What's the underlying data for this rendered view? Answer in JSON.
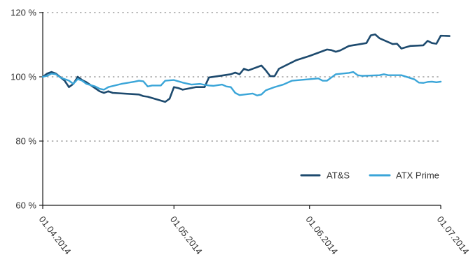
{
  "chart_data": {
    "type": "line",
    "title": "",
    "xlabel": "",
    "ylabel": "",
    "xlim": [
      "01.04.2014",
      "01.07.2014"
    ],
    "ylim": [
      60,
      120
    ],
    "x_ticks": [
      "01.04.2014",
      "01.05.2014",
      "01.06.2014",
      "01.07.2014"
    ],
    "y_ticks": [
      {
        "value": 60,
        "label": "60 %"
      },
      {
        "value": 80,
        "label": "80 %"
      },
      {
        "value": 100,
        "label": "100 %"
      },
      {
        "value": 120,
        "label": "120 %"
      }
    ],
    "grid": "horizontal dotted",
    "legend_position": "lower-right",
    "series": [
      {
        "name": "AT&S",
        "color": "#1d4a6e",
        "points": [
          [
            "01.04.2014",
            100.0
          ],
          [
            "02.04.2014",
            101.0
          ],
          [
            "03.04.2014",
            101.5
          ],
          [
            "04.04.2014",
            101.0
          ],
          [
            "06.04.2014",
            98.8
          ],
          [
            "07.04.2014",
            96.8
          ],
          [
            "08.04.2014",
            97.8
          ],
          [
            "09.04.2014",
            100.0
          ],
          [
            "10.04.2014",
            99.0
          ],
          [
            "11.04.2014",
            98.3
          ],
          [
            "14.04.2014",
            95.5
          ],
          [
            "15.04.2014",
            95.0
          ],
          [
            "16.04.2014",
            95.5
          ],
          [
            "17.04.2014",
            95.0
          ],
          [
            "23.04.2014",
            94.5
          ],
          [
            "24.04.2014",
            94.0
          ],
          [
            "25.04.2014",
            93.8
          ],
          [
            "29.04.2014",
            92.2
          ],
          [
            "30.04.2014",
            93.2
          ],
          [
            "01.05.2014",
            96.8
          ],
          [
            "02.05.2014",
            96.5
          ],
          [
            "03.05.2014",
            96.0
          ],
          [
            "06.05.2014",
            96.8
          ],
          [
            "08.05.2014",
            96.8
          ],
          [
            "09.05.2014",
            99.8
          ],
          [
            "14.05.2014",
            100.8
          ],
          [
            "15.05.2014",
            101.3
          ],
          [
            "16.05.2014",
            100.8
          ],
          [
            "17.05.2014",
            102.5
          ],
          [
            "18.05.2014",
            102.0
          ],
          [
            "21.05.2014",
            103.5
          ],
          [
            "22.05.2014",
            102.0
          ],
          [
            "23.05.2014",
            100.2
          ],
          [
            "24.05.2014",
            100.2
          ],
          [
            "25.05.2014",
            102.5
          ],
          [
            "29.05.2014",
            105.2
          ],
          [
            "01.06.2014",
            106.5
          ],
          [
            "05.06.2014",
            108.5
          ],
          [
            "06.06.2014",
            108.3
          ],
          [
            "07.06.2014",
            107.8
          ],
          [
            "08.06.2014",
            108.2
          ],
          [
            "10.06.2014",
            109.6
          ],
          [
            "14.06.2014",
            110.5
          ],
          [
            "15.06.2014",
            112.9
          ],
          [
            "16.06.2014",
            113.2
          ],
          [
            "17.06.2014",
            112.0
          ],
          [
            "20.06.2014",
            110.2
          ],
          [
            "21.06.2014",
            110.3
          ],
          [
            "22.06.2014",
            108.8
          ],
          [
            "24.06.2014",
            109.6
          ],
          [
            "27.06.2014",
            109.8
          ],
          [
            "28.06.2014",
            111.2
          ],
          [
            "29.06.2014",
            110.5
          ],
          [
            "30.06.2014",
            110.3
          ],
          [
            "01.07.2014",
            112.8
          ],
          [
            "03.07.2014",
            112.7
          ]
        ]
      },
      {
        "name": "ATX Prime",
        "color": "#3aa5d8",
        "points": [
          [
            "01.04.2014",
            100.0
          ],
          [
            "02.04.2014",
            100.3
          ],
          [
            "03.04.2014",
            101.0
          ],
          [
            "04.04.2014",
            100.8
          ],
          [
            "05.04.2014",
            99.8
          ],
          [
            "06.04.2014",
            99.3
          ],
          [
            "07.04.2014",
            98.8
          ],
          [
            "08.04.2014",
            97.8
          ],
          [
            "09.04.2014",
            99.3
          ],
          [
            "10.04.2014",
            98.8
          ],
          [
            "11.04.2014",
            97.8
          ],
          [
            "13.04.2014",
            97.0
          ],
          [
            "14.04.2014",
            96.3
          ],
          [
            "15.04.2014",
            96.0
          ],
          [
            "16.04.2014",
            96.8
          ],
          [
            "19.04.2014",
            97.8
          ],
          [
            "22.04.2014",
            98.5
          ],
          [
            "23.04.2014",
            98.8
          ],
          [
            "24.04.2014",
            98.6
          ],
          [
            "25.04.2014",
            97.0
          ],
          [
            "26.04.2014",
            97.3
          ],
          [
            "28.04.2014",
            97.3
          ],
          [
            "29.04.2014",
            98.8
          ],
          [
            "30.04.2014",
            98.9
          ],
          [
            "01.05.2014",
            99.0
          ],
          [
            "03.05.2014",
            98.2
          ],
          [
            "05.05.2014",
            97.6
          ],
          [
            "07.05.2014",
            97.8
          ],
          [
            "08.05.2014",
            97.5
          ],
          [
            "09.05.2014",
            97.3
          ],
          [
            "10.05.2014",
            97.2
          ],
          [
            "12.05.2014",
            97.6
          ],
          [
            "13.05.2014",
            97.0
          ],
          [
            "14.05.2014",
            96.8
          ],
          [
            "15.05.2014",
            95.0
          ],
          [
            "16.05.2014",
            94.3
          ],
          [
            "19.05.2014",
            94.8
          ],
          [
            "20.05.2014",
            94.2
          ],
          [
            "21.05.2014",
            94.5
          ],
          [
            "22.05.2014",
            95.8
          ],
          [
            "24.05.2014",
            96.8
          ],
          [
            "26.05.2014",
            97.6
          ],
          [
            "28.05.2014",
            98.8
          ],
          [
            "03.06.2014",
            99.5
          ],
          [
            "04.06.2014",
            98.8
          ],
          [
            "05.06.2014",
            98.8
          ],
          [
            "06.06.2014",
            99.8
          ],
          [
            "07.06.2014",
            100.8
          ],
          [
            "10.06.2014",
            101.2
          ],
          [
            "11.06.2014",
            101.5
          ],
          [
            "12.06.2014",
            100.5
          ],
          [
            "13.06.2014",
            100.3
          ],
          [
            "17.06.2014",
            100.5
          ],
          [
            "18.06.2014",
            100.8
          ],
          [
            "19.06.2014",
            100.5
          ],
          [
            "22.06.2014",
            100.5
          ],
          [
            "25.06.2014",
            99.2
          ],
          [
            "26.06.2014",
            98.2
          ],
          [
            "27.06.2014",
            98.1
          ],
          [
            "28.06.2014",
            98.4
          ],
          [
            "29.06.2014",
            98.5
          ],
          [
            "30.06.2014",
            98.3
          ],
          [
            "01.07.2014",
            98.5
          ]
        ]
      }
    ]
  }
}
